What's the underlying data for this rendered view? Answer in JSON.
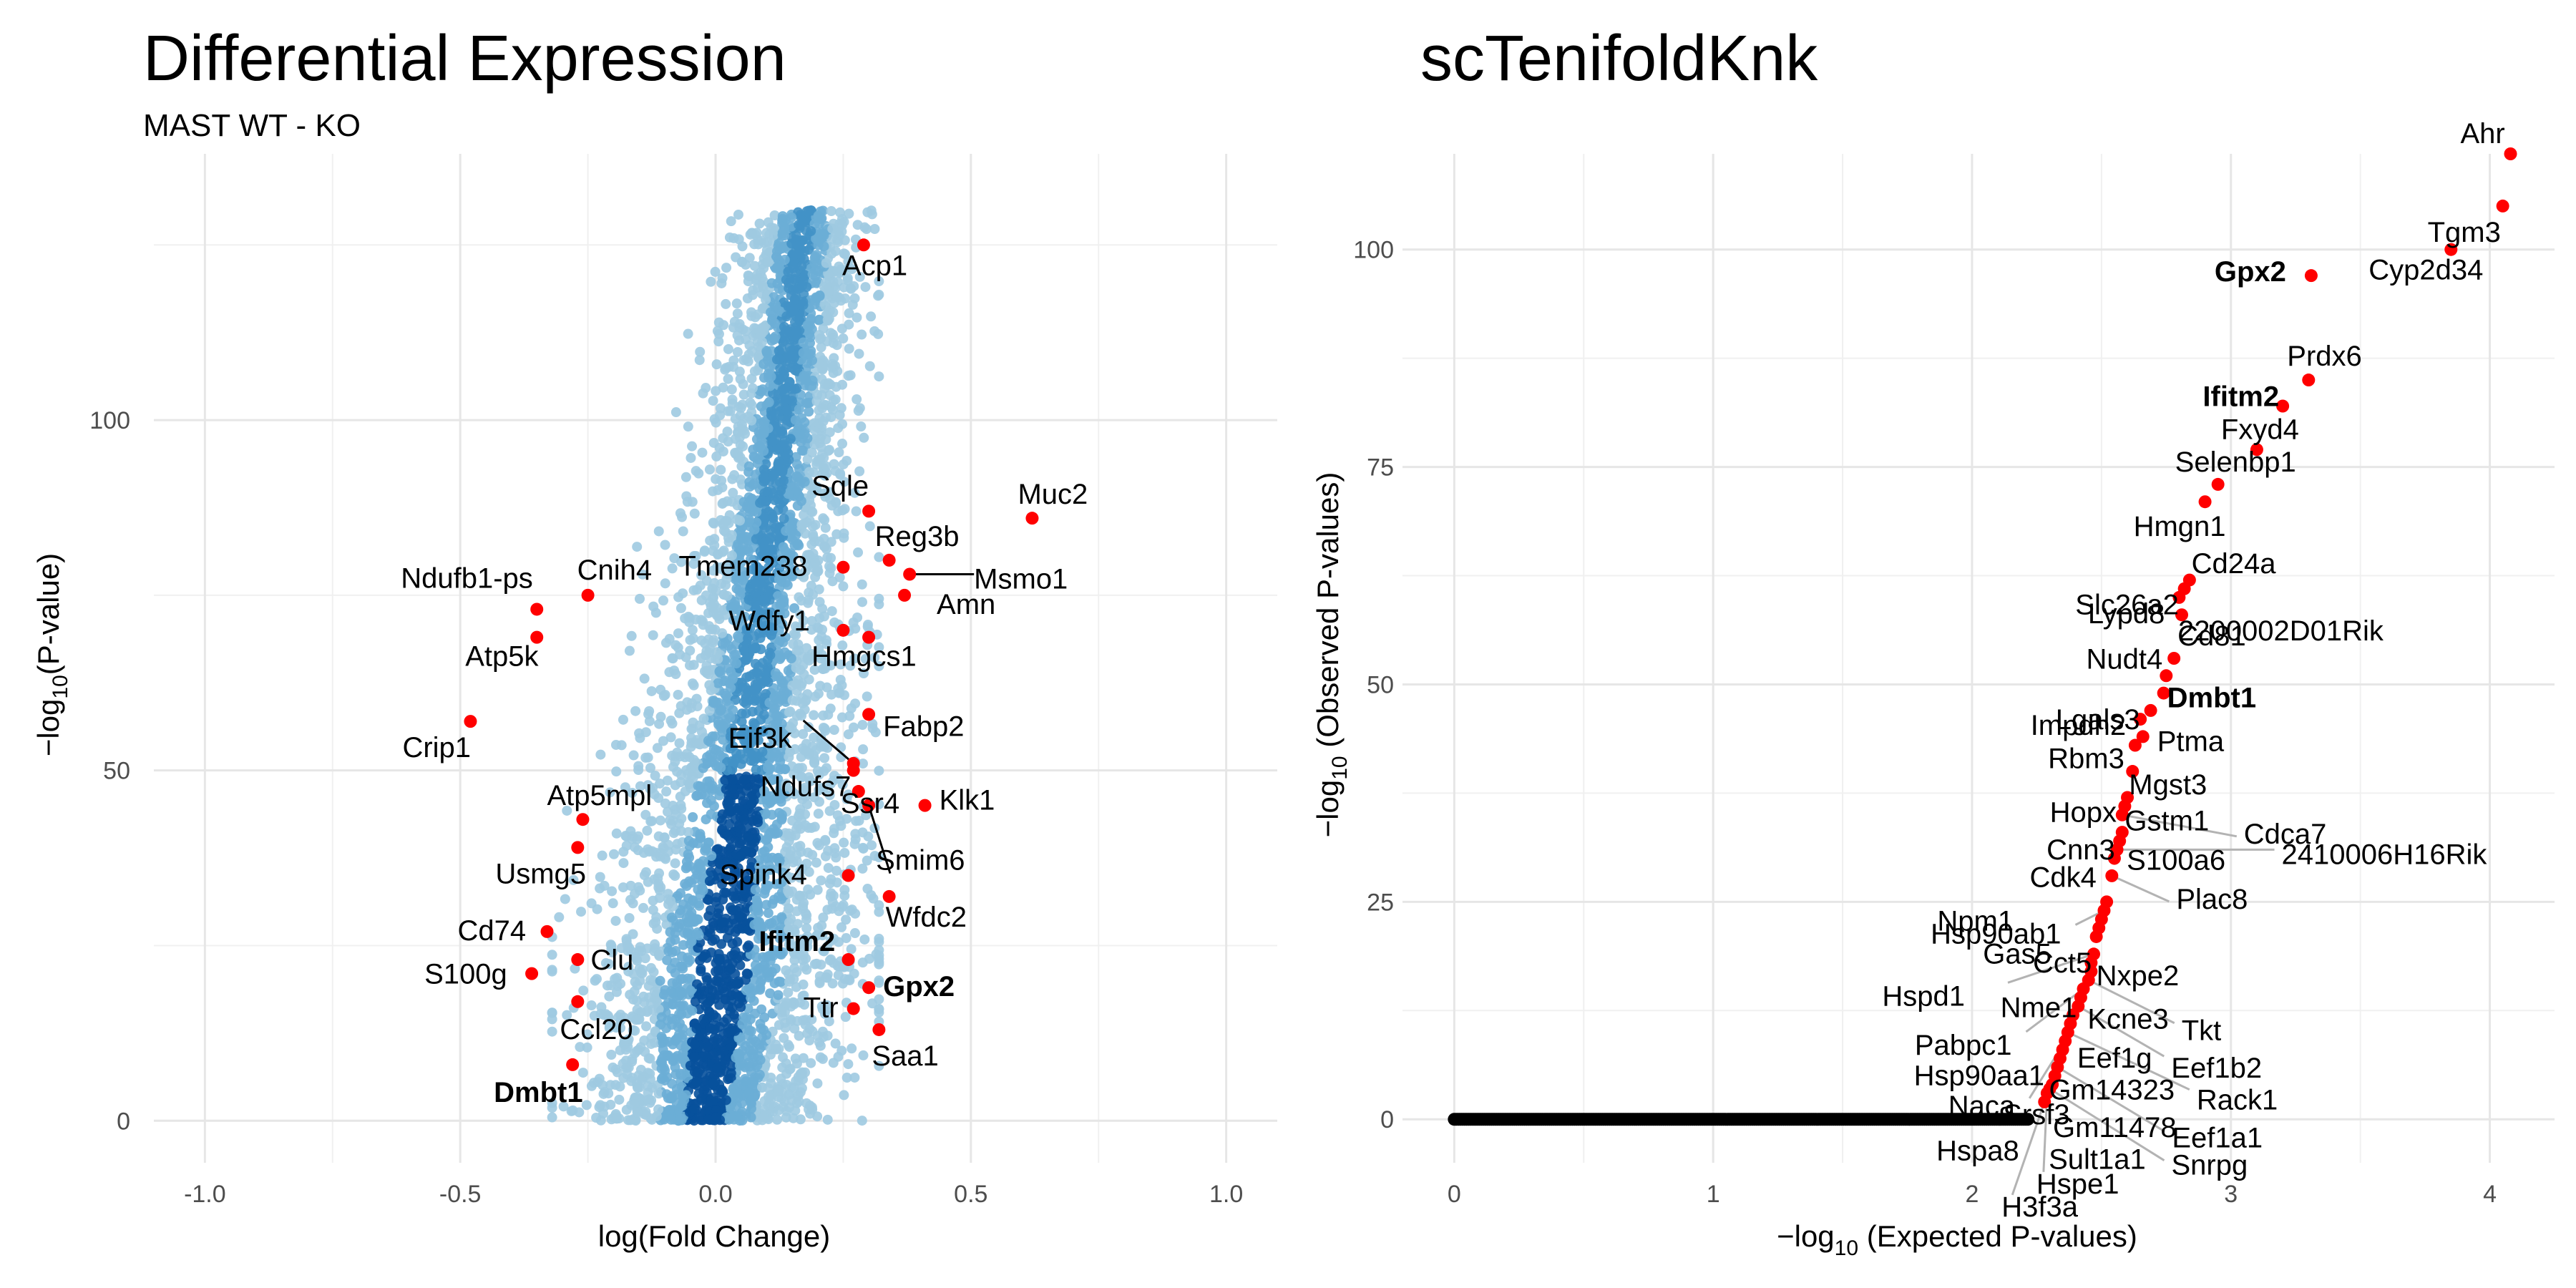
{
  "chart_data": [
    {
      "type": "scatter",
      "title": "Differential Expression",
      "subtitle": "MAST WT - KO",
      "xlabel": "log(Fold Change)",
      "ylabel": "−log10(P-value)",
      "ylabel_main": "−log",
      "ylabel_sub": "10",
      "ylabel_tail": "(P-value)",
      "xlim": [
        -1.1,
        1.1
      ],
      "ylim": [
        -6,
        138
      ],
      "x_ticks": [
        -1.0,
        -0.5,
        0.0,
        0.5,
        1.0
      ],
      "x_tick_labels": [
        "-1.0",
        "-0.5",
        "0.0",
        "0.5",
        "1.0"
      ],
      "y_ticks": [
        0,
        50,
        100
      ],
      "y_tick_labels": [
        "0",
        "50",
        "100"
      ],
      "grid": true,
      "background_points": "dense blue density cloud of ~10000 genes centered near x=0",
      "colors": {
        "cloud_light": "#9ecae1",
        "cloud_mid": "#4292c6",
        "cloud_dark": "#08519c",
        "highlight": "#ff0000"
      },
      "highlighted": [
        {
          "label": "Acp1",
          "x": 0.29,
          "y": 125,
          "bold": false
        },
        {
          "label": "Muc2",
          "x": 0.62,
          "y": 86,
          "bold": false
        },
        {
          "label": "Sqle",
          "x": 0.3,
          "y": 87,
          "bold": false
        },
        {
          "label": "Reg3b",
          "x": 0.34,
          "y": 80,
          "bold": false
        },
        {
          "label": "Msmo1",
          "x": 0.38,
          "y": 78,
          "bold": false
        },
        {
          "label": "Tmem238",
          "x": 0.25,
          "y": 79,
          "bold": false
        },
        {
          "label": "Amn",
          "x": 0.37,
          "y": 75,
          "bold": false
        },
        {
          "label": "Wdfy1",
          "x": 0.25,
          "y": 70,
          "bold": false
        },
        {
          "label": "Hmgcs1",
          "x": 0.3,
          "y": 69,
          "bold": false
        },
        {
          "label": "Fabp2",
          "x": 0.3,
          "y": 58,
          "bold": false
        },
        {
          "label": "Eif3k",
          "x": 0.27,
          "y": 51,
          "bold": false
        },
        {
          "label": "Ndufs7",
          "x": 0.27,
          "y": 50,
          "bold": false
        },
        {
          "label": "Klk1",
          "x": 0.41,
          "y": 45,
          "bold": false
        },
        {
          "label": "Ssr4",
          "x": 0.28,
          "y": 47,
          "bold": false
        },
        {
          "label": "Smim6",
          "x": 0.3,
          "y": 45,
          "bold": false
        },
        {
          "label": "Spink4",
          "x": 0.26,
          "y": 35,
          "bold": false
        },
        {
          "label": "Wfdc2",
          "x": 0.34,
          "y": 32,
          "bold": false
        },
        {
          "label": "Ifitm2",
          "x": 0.26,
          "y": 23,
          "bold": true
        },
        {
          "label": "Gpx2",
          "x": 0.3,
          "y": 19,
          "bold": true
        },
        {
          "label": "Ttr",
          "x": 0.27,
          "y": 16,
          "bold": false
        },
        {
          "label": "Saa1",
          "x": 0.32,
          "y": 13,
          "bold": false
        },
        {
          "label": "Ndufb1-ps",
          "x": -0.35,
          "y": 73,
          "bold": false
        },
        {
          "label": "Cnih4",
          "x": -0.25,
          "y": 75,
          "bold": false
        },
        {
          "label": "Atp5k",
          "x": -0.35,
          "y": 69,
          "bold": false
        },
        {
          "label": "Crip1",
          "x": -0.48,
          "y": 57,
          "bold": false
        },
        {
          "label": "Atp5mpl",
          "x": -0.26,
          "y": 43,
          "bold": false
        },
        {
          "label": "Usmg5",
          "x": -0.27,
          "y": 39,
          "bold": false
        },
        {
          "label": "Cd74",
          "x": -0.33,
          "y": 27,
          "bold": false
        },
        {
          "label": "Clu",
          "x": -0.27,
          "y": 23,
          "bold": false
        },
        {
          "label": "S100g",
          "x": -0.36,
          "y": 21,
          "bold": false
        },
        {
          "label": "Ccl20",
          "x": -0.27,
          "y": 17,
          "bold": false
        },
        {
          "label": "Dmbt1",
          "x": -0.28,
          "y": 8,
          "bold": true
        }
      ]
    },
    {
      "type": "scatter",
      "title": "scTenifoldKnk",
      "xlabel": "−log10 (Expected P-values)",
      "xlabel_main": "−log",
      "xlabel_sub": "10",
      "xlabel_tail": " (Expected P-values)",
      "ylabel": "−log10 (Observed P-values)",
      "ylabel_main": "−log",
      "ylabel_sub": "10",
      "ylabel_tail": " (Observed P-values)",
      "xlim": [
        -0.2,
        4.25
      ],
      "ylim": [
        -5,
        111
      ],
      "x_ticks": [
        0,
        1,
        2,
        3,
        4
      ],
      "x_tick_labels": [
        "0",
        "1",
        "2",
        "3",
        "4"
      ],
      "y_ticks": [
        0,
        25,
        50,
        75,
        100
      ],
      "y_tick_labels": [
        "0",
        "25",
        "50",
        "75",
        "100"
      ],
      "grid": true,
      "background_points": "black points at y=0 from x=0 to ~2.2",
      "colors": {
        "base": "#000000",
        "highlight": "#ff0000",
        "leader": "#b3b3b3"
      },
      "highlighted": [
        {
          "label": "Ahr",
          "x": 4.08,
          "y": 111,
          "bold": false
        },
        {
          "label": "Tgm3",
          "x": 4.05,
          "y": 105,
          "bold": false
        },
        {
          "label": "Cyp2d34",
          "x": 3.85,
          "y": 100,
          "bold": false
        },
        {
          "label": "Gpx2",
          "x": 3.31,
          "y": 97,
          "bold": true
        },
        {
          "label": "Prdx6",
          "x": 3.3,
          "y": 85,
          "bold": false
        },
        {
          "label": "Ifitm2",
          "x": 3.2,
          "y": 82,
          "bold": true
        },
        {
          "label": "Fxyd4",
          "x": 3.1,
          "y": 77,
          "bold": false
        },
        {
          "label": "Selenbp1",
          "x": 2.95,
          "y": 73,
          "bold": false
        },
        {
          "label": "Hmgn1",
          "x": 2.9,
          "y": 71,
          "bold": false
        },
        {
          "label": "Slc26a2",
          "x": 2.84,
          "y": 62,
          "bold": false
        },
        {
          "label": "Cd24a",
          "x": 2.82,
          "y": 61,
          "bold": false
        },
        {
          "label": "Lypd8",
          "x": 2.8,
          "y": 60,
          "bold": false
        },
        {
          "label": "2200002D01Rik",
          "x": 2.81,
          "y": 58,
          "bold": false
        },
        {
          "label": "Cd81",
          "x": 2.78,
          "y": 53,
          "bold": false
        },
        {
          "label": "Nudt4",
          "x": 2.75,
          "y": 51,
          "bold": false
        },
        {
          "label": "Dmbt1",
          "x": 2.74,
          "y": 49,
          "bold": true
        },
        {
          "label": "Lgals3",
          "x": 2.69,
          "y": 47,
          "bold": false
        },
        {
          "label": "Impdh2",
          "x": 2.65,
          "y": 46,
          "bold": false
        },
        {
          "label": "Ptma",
          "x": 2.66,
          "y": 44,
          "bold": false
        },
        {
          "label": "Rbm3",
          "x": 2.63,
          "y": 43,
          "bold": false
        },
        {
          "label": "Mgst3",
          "x": 2.62,
          "y": 40,
          "bold": false
        },
        {
          "label": "Hopx",
          "x": 2.6,
          "y": 37,
          "bold": false
        },
        {
          "label": "Gstm1",
          "x": 2.59,
          "y": 36,
          "bold": false
        },
        {
          "label": "Cdca7",
          "x": 2.58,
          "y": 35,
          "bold": false
        },
        {
          "label": "Cnn3",
          "x": 2.58,
          "y": 33,
          "bold": false
        },
        {
          "label": "S100a6",
          "x": 2.57,
          "y": 32,
          "bold": false
        },
        {
          "label": "2410006H16Rik",
          "x": 2.56,
          "y": 31,
          "bold": false
        },
        {
          "label": "Cdk4",
          "x": 2.55,
          "y": 30,
          "bold": false
        },
        {
          "label": "Plac8",
          "x": 2.54,
          "y": 28,
          "bold": false
        },
        {
          "label": "Npm1",
          "x": 2.52,
          "y": 25,
          "bold": false
        },
        {
          "label": "Hsp90ab1",
          "x": 2.51,
          "y": 24,
          "bold": false
        },
        {
          "label": "Gas5",
          "x": 2.5,
          "y": 23,
          "bold": false
        },
        {
          "label": "Cct5",
          "x": 2.49,
          "y": 22,
          "bold": false
        },
        {
          "label": "Nxpe2",
          "x": 2.48,
          "y": 21,
          "bold": false
        },
        {
          "label": "Hspd1",
          "x": 2.47,
          "y": 19,
          "bold": false
        },
        {
          "label": "Nme1",
          "x": 2.46,
          "y": 18,
          "bold": false
        },
        {
          "label": "Kcne3",
          "x": 2.46,
          "y": 17,
          "bold": false
        },
        {
          "label": "Tkt",
          "x": 2.45,
          "y": 16,
          "bold": false
        },
        {
          "label": "Pabpc1",
          "x": 2.43,
          "y": 15,
          "bold": false
        },
        {
          "label": "Eef1g",
          "x": 2.42,
          "y": 14,
          "bold": false
        },
        {
          "label": "Eef1b2",
          "x": 2.41,
          "y": 13,
          "bold": false
        },
        {
          "label": "Hsp90aa1",
          "x": 2.39,
          "y": 12,
          "bold": false
        },
        {
          "label": "Gm14323",
          "x": 2.38,
          "y": 11,
          "bold": false
        },
        {
          "label": "Rack1",
          "x": 2.37,
          "y": 10,
          "bold": false
        },
        {
          "label": "Naca",
          "x": 2.36,
          "y": 9,
          "bold": false
        },
        {
          "label": "Srsf3",
          "x": 2.35,
          "y": 8,
          "bold": false
        },
        {
          "label": "Gm11478",
          "x": 2.34,
          "y": 7,
          "bold": false
        },
        {
          "label": "Eef1a1",
          "x": 2.33,
          "y": 6,
          "bold": false
        },
        {
          "label": "Hspa8",
          "x": 2.32,
          "y": 5,
          "bold": false
        },
        {
          "label": "Sult1a1",
          "x": 2.31,
          "y": 4,
          "bold": false
        },
        {
          "label": "Snrpg",
          "x": 2.3,
          "y": 3.5,
          "bold": false
        },
        {
          "label": "Hspe1",
          "x": 2.29,
          "y": 3,
          "bold": false
        },
        {
          "label": "H3f3a",
          "x": 2.28,
          "y": 2,
          "bold": false
        }
      ]
    }
  ]
}
